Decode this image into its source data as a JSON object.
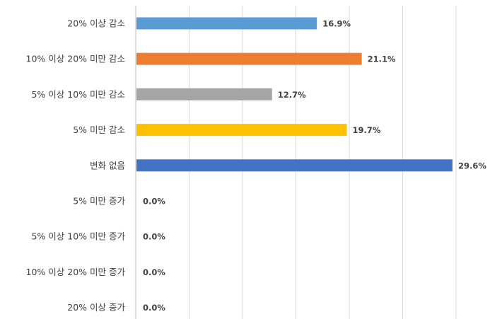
{
  "chart_data": {
    "type": "bar",
    "orientation": "horizontal",
    "categories": [
      "20% 이상 감소",
      "10% 이상 20% 미만 감소",
      "5% 이상 10% 미만 감소",
      "5% 미만 감소",
      "변화 없음",
      "5% 미만 증가",
      "5% 이상 10% 미만 증가",
      "10% 이상 20% 미만 증가",
      "20% 이상 증가"
    ],
    "values": [
      16.9,
      21.1,
      12.7,
      19.7,
      29.6,
      0.0,
      0.0,
      0.0,
      0.0
    ],
    "value_labels": [
      "16.9%",
      "21.1%",
      "12.7%",
      "19.7%",
      "29.6%",
      "0.0%",
      "0.0%",
      "0.0%",
      "0.0%"
    ],
    "colors": [
      "#5B9BD5",
      "#ED7D31",
      "#A5A5A5",
      "#FFC000",
      "#4472C4",
      "#5B9BD5",
      "#ED7D31",
      "#A5A5A5",
      "#FFC000"
    ],
    "xlim": [
      0,
      30
    ],
    "grid": true,
    "legend": "none",
    "title": "",
    "xlabel": "",
    "ylabel": ""
  }
}
